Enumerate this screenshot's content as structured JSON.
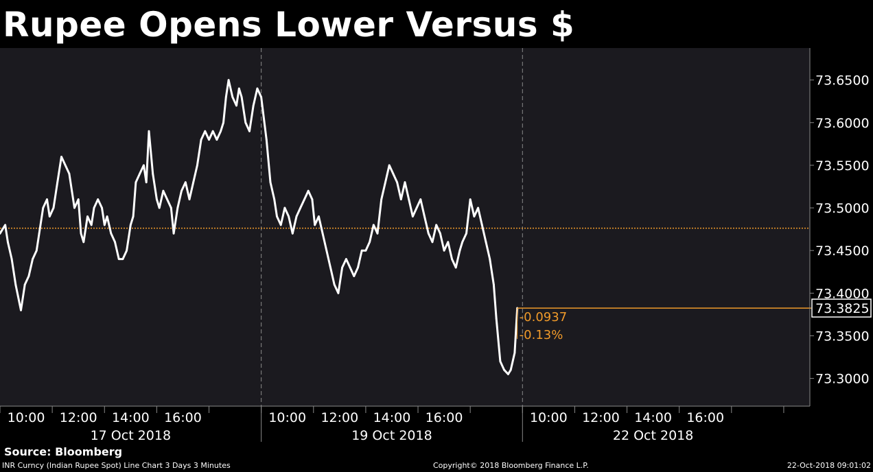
{
  "chart_data": {
    "type": "line",
    "title": "Rupee Opens Lower Versus $",
    "series": [
      {
        "values": [
          [
            0.0,
            73.47
          ],
          [
            0.2,
            73.48
          ],
          [
            0.3,
            73.46
          ],
          [
            0.45,
            73.44
          ],
          [
            0.6,
            73.41
          ],
          [
            0.8,
            73.38
          ],
          [
            0.95,
            73.41
          ],
          [
            1.1,
            73.42
          ],
          [
            1.25,
            73.44
          ],
          [
            1.4,
            73.45
          ],
          [
            1.5,
            73.47
          ],
          [
            1.65,
            73.5
          ],
          [
            1.8,
            73.51
          ],
          [
            1.9,
            73.49
          ],
          [
            2.05,
            73.5
          ],
          [
            2.2,
            73.53
          ],
          [
            2.35,
            73.56
          ],
          [
            2.5,
            73.55
          ],
          [
            2.65,
            73.54
          ],
          [
            2.75,
            73.52
          ],
          [
            2.85,
            73.5
          ],
          [
            3.0,
            73.51
          ],
          [
            3.1,
            73.47
          ],
          [
            3.2,
            73.46
          ],
          [
            3.35,
            73.49
          ],
          [
            3.5,
            73.48
          ],
          [
            3.6,
            73.5
          ],
          [
            3.75,
            73.51
          ],
          [
            3.9,
            73.5
          ],
          [
            4.0,
            73.48
          ],
          [
            4.1,
            73.49
          ],
          [
            4.25,
            73.47
          ],
          [
            4.4,
            73.46
          ],
          [
            4.55,
            73.44
          ],
          [
            4.7,
            73.44
          ],
          [
            4.85,
            73.45
          ],
          [
            5.0,
            73.48
          ],
          [
            5.1,
            73.49
          ],
          [
            5.2,
            73.53
          ],
          [
            5.35,
            73.54
          ],
          [
            5.5,
            73.55
          ],
          [
            5.6,
            73.53
          ],
          [
            5.7,
            73.59
          ],
          [
            5.85,
            73.54
          ],
          [
            6.0,
            73.51
          ],
          [
            6.1,
            73.5
          ],
          [
            6.25,
            73.52
          ],
          [
            6.4,
            73.51
          ],
          [
            6.55,
            73.5
          ],
          [
            6.65,
            73.47
          ],
          [
            6.8,
            73.5
          ],
          [
            6.95,
            73.52
          ],
          [
            7.1,
            73.53
          ],
          [
            7.25,
            73.51
          ],
          [
            7.4,
            73.53
          ],
          [
            7.55,
            73.55
          ],
          [
            7.7,
            73.58
          ],
          [
            7.85,
            73.59
          ],
          [
            8.0,
            73.58
          ],
          [
            8.15,
            73.59
          ],
          [
            8.3,
            73.58
          ],
          [
            8.45,
            73.59
          ],
          [
            8.55,
            73.6
          ],
          [
            8.65,
            73.63
          ],
          [
            8.75,
            73.65
          ],
          [
            8.9,
            73.63
          ],
          [
            9.05,
            73.62
          ],
          [
            9.15,
            73.64
          ],
          [
            9.25,
            73.63
          ],
          [
            9.4,
            73.6
          ],
          [
            9.55,
            73.59
          ],
          [
            9.7,
            73.62
          ],
          [
            9.85,
            73.64
          ],
          [
            10.0,
            73.63
          ],
          [
            10.2,
            73.58
          ],
          [
            10.35,
            73.53
          ],
          [
            10.5,
            73.51
          ],
          [
            10.6,
            73.49
          ],
          [
            10.75,
            73.48
          ],
          [
            10.9,
            73.5
          ],
          [
            11.05,
            73.49
          ],
          [
            11.2,
            73.47
          ],
          [
            11.35,
            73.49
          ],
          [
            11.5,
            73.5
          ],
          [
            11.65,
            73.51
          ],
          [
            11.8,
            73.52
          ],
          [
            11.95,
            73.51
          ],
          [
            12.05,
            73.48
          ],
          [
            12.2,
            73.49
          ],
          [
            12.35,
            73.47
          ],
          [
            12.5,
            73.45
          ],
          [
            12.65,
            73.43
          ],
          [
            12.8,
            73.41
          ],
          [
            12.95,
            73.4
          ],
          [
            13.1,
            73.43
          ],
          [
            13.25,
            73.44
          ],
          [
            13.4,
            73.43
          ],
          [
            13.55,
            73.42
          ],
          [
            13.7,
            73.43
          ],
          [
            13.85,
            73.45
          ],
          [
            14.0,
            73.45
          ],
          [
            14.15,
            73.46
          ],
          [
            14.3,
            73.48
          ],
          [
            14.45,
            73.47
          ],
          [
            14.6,
            73.51
          ],
          [
            14.75,
            73.53
          ],
          [
            14.9,
            73.55
          ],
          [
            15.05,
            73.54
          ],
          [
            15.2,
            73.53
          ],
          [
            15.35,
            73.51
          ],
          [
            15.5,
            73.53
          ],
          [
            15.65,
            73.51
          ],
          [
            15.8,
            73.49
          ],
          [
            15.95,
            73.5
          ],
          [
            16.1,
            73.51
          ],
          [
            16.25,
            73.49
          ],
          [
            16.4,
            73.47
          ],
          [
            16.55,
            73.46
          ],
          [
            16.7,
            73.48
          ],
          [
            16.85,
            73.47
          ],
          [
            17.0,
            73.45
          ],
          [
            17.15,
            73.46
          ],
          [
            17.3,
            73.44
          ],
          [
            17.45,
            73.43
          ],
          [
            17.6,
            73.45
          ],
          [
            17.7,
            73.46
          ],
          [
            17.85,
            73.47
          ],
          [
            18.0,
            73.51
          ],
          [
            18.15,
            73.49
          ],
          [
            18.3,
            73.5
          ],
          [
            18.45,
            73.48
          ],
          [
            18.6,
            73.46
          ],
          [
            18.75,
            73.44
          ],
          [
            18.9,
            73.41
          ],
          [
            19.0,
            73.37
          ],
          [
            19.15,
            73.32
          ],
          [
            19.3,
            73.31
          ],
          [
            19.45,
            73.305
          ],
          [
            19.55,
            73.31
          ],
          [
            19.7,
            73.33
          ],
          [
            19.8,
            73.3825
          ]
        ]
      }
    ],
    "x_axis": {
      "range": [
        0,
        31
      ],
      "tick_labels": [
        {
          "x": 1.0,
          "label": "10:00"
        },
        {
          "x": 3.0,
          "label": "12:00"
        },
        {
          "x": 5.0,
          "label": "14:00"
        },
        {
          "x": 7.0,
          "label": "16:00"
        },
        {
          "x": 11.0,
          "label": "10:00"
        },
        {
          "x": 13.0,
          "label": "12:00"
        },
        {
          "x": 15.0,
          "label": "14:00"
        },
        {
          "x": 17.0,
          "label": "16:00"
        },
        {
          "x": 21.0,
          "label": "10:00"
        },
        {
          "x": 23.0,
          "label": "12:00"
        },
        {
          "x": 25.0,
          "label": "14:00"
        },
        {
          "x": 27.0,
          "label": "16:00"
        }
      ],
      "minor_ticks": [
        0,
        2,
        4,
        6,
        8,
        10,
        12,
        14,
        16,
        18,
        20,
        22,
        24,
        26,
        28,
        30
      ],
      "day_separators": [
        10,
        20
      ],
      "day_labels": [
        {
          "x": 5.0,
          "label": "17 Oct 2018"
        },
        {
          "x": 15.0,
          "label": "19 Oct 2018"
        },
        {
          "x": 25.0,
          "label": "22 Oct 2018"
        }
      ]
    },
    "y_axis": {
      "range": [
        73.2675,
        73.6875
      ],
      "ticks": [
        "73.3000",
        "73.3500",
        "73.4000",
        "73.4500",
        "73.5000",
        "73.5500",
        "73.6000",
        "73.6500"
      ],
      "position": "right"
    },
    "reference_line": {
      "value": 73.4762,
      "style": "dotted",
      "color": "#f09a2a"
    },
    "last_value": {
      "label": "73.3825",
      "value": 73.3825
    },
    "change": {
      "absolute": "-0.0937",
      "percent": "-0.13%"
    },
    "grid": false,
    "colors": {
      "background": "#1b1a1f",
      "line": "#ffffff",
      "accent": "#f09a2a",
      "axis": "#8a8a8a",
      "label_box": "#ffffff"
    }
  },
  "footer": {
    "source": "Source: Bloomberg",
    "description": "INR Curncy (Indian Rupee Spot) Line Chart 3 Days 3 Minutes",
    "copyright": "Copyright© 2018 Bloomberg Finance L.P.",
    "timestamp": "22-Oct-2018 09:01:02"
  }
}
